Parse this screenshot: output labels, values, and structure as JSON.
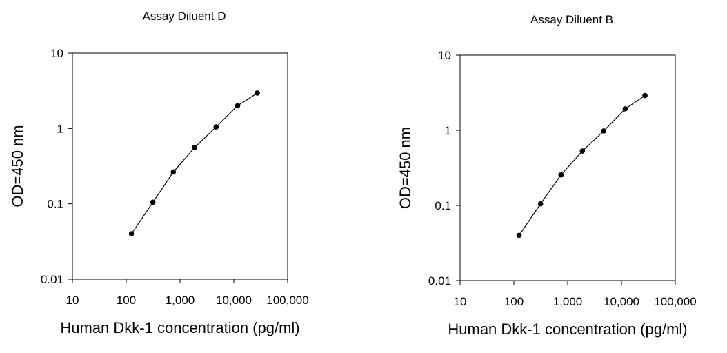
{
  "chart_data": [
    {
      "type": "scatter",
      "title": "Assay Diluent D",
      "xlabel": "Human Dkk-1 concentration (pg/ml)",
      "ylabel": "OD=450 nm",
      "xscale": "log",
      "yscale": "log",
      "xlim": [
        10,
        100000
      ],
      "ylim": [
        0.01,
        10
      ],
      "xticks": [
        10,
        100,
        1000,
        10000,
        100000
      ],
      "xtick_labels": [
        "10",
        "100",
        "1,000",
        "10,000",
        "100,000"
      ],
      "yticks": [
        0.01,
        0.1,
        1,
        10
      ],
      "ytick_labels": [
        "0.01",
        "0.1",
        "1",
        "10"
      ],
      "grid": false,
      "legend": "none",
      "connect_points": true,
      "point_color": "#000000",
      "x": [
        125,
        313,
        750,
        1875,
        4688,
        11719,
        27344
      ],
      "y": [
        0.04,
        0.105,
        0.265,
        0.56,
        1.05,
        2.0,
        2.95
      ]
    },
    {
      "type": "scatter",
      "title": "Assay Diluent B",
      "xlabel": "Human Dkk-1 concentration (pg/ml)",
      "ylabel": "OD=450 nm",
      "xscale": "log",
      "yscale": "log",
      "xlim": [
        10,
        100000
      ],
      "ylim": [
        0.01,
        10
      ],
      "xticks": [
        10,
        100,
        1000,
        10000,
        100000
      ],
      "xtick_labels": [
        "10",
        "100",
        "1,000",
        "10,000",
        "100,000"
      ],
      "yticks": [
        0.01,
        0.1,
        1,
        10
      ],
      "ytick_labels": [
        "0.01",
        "0.1",
        "1",
        "10"
      ],
      "grid": false,
      "legend": "none",
      "connect_points": true,
      "point_color": "#000000",
      "x": [
        125,
        313,
        750,
        1875,
        4688,
        11719,
        27344
      ],
      "y": [
        0.04,
        0.105,
        0.255,
        0.53,
        0.98,
        1.93,
        2.9
      ]
    }
  ]
}
